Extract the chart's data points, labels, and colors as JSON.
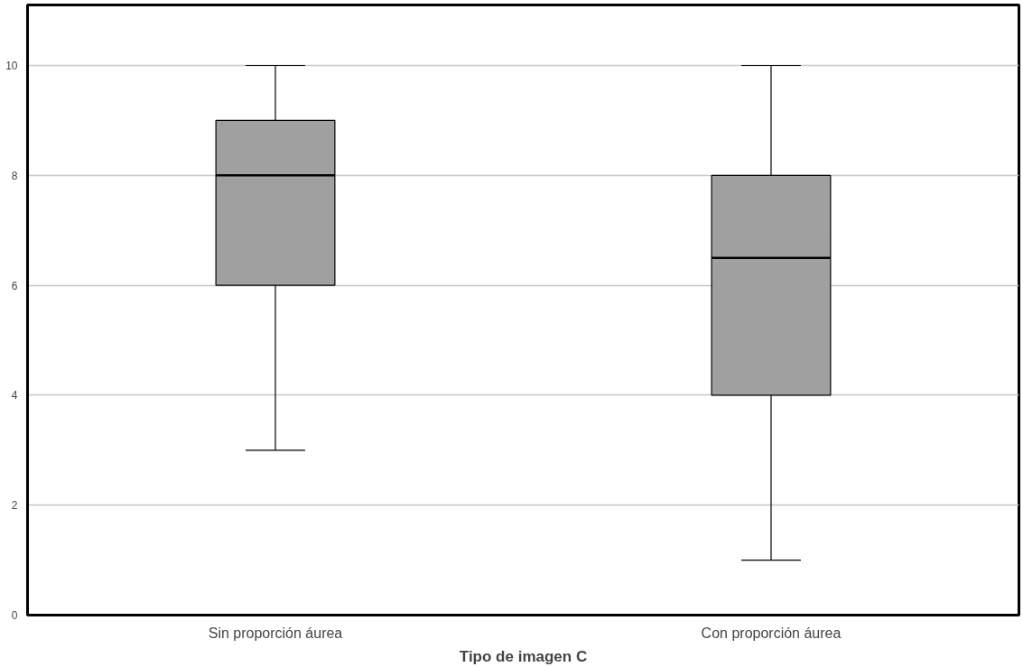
{
  "chart_data": {
    "type": "box",
    "xlabel": "Tipo de imagen C",
    "categories": [
      "Sin proporción áurea",
      "Con proporción áurea"
    ],
    "boxes": [
      {
        "low": 3,
        "q1": 6,
        "median": 8,
        "q3": 9,
        "high": 10
      },
      {
        "low": 1,
        "q1": 4,
        "median": 6.5,
        "q3": 8,
        "high": 10
      }
    ],
    "color": "#a0a0a0",
    "ylim": [
      0,
      11.1
    ],
    "yticks": [
      0,
      2,
      4,
      6,
      8,
      10
    ],
    "grid": "y"
  }
}
